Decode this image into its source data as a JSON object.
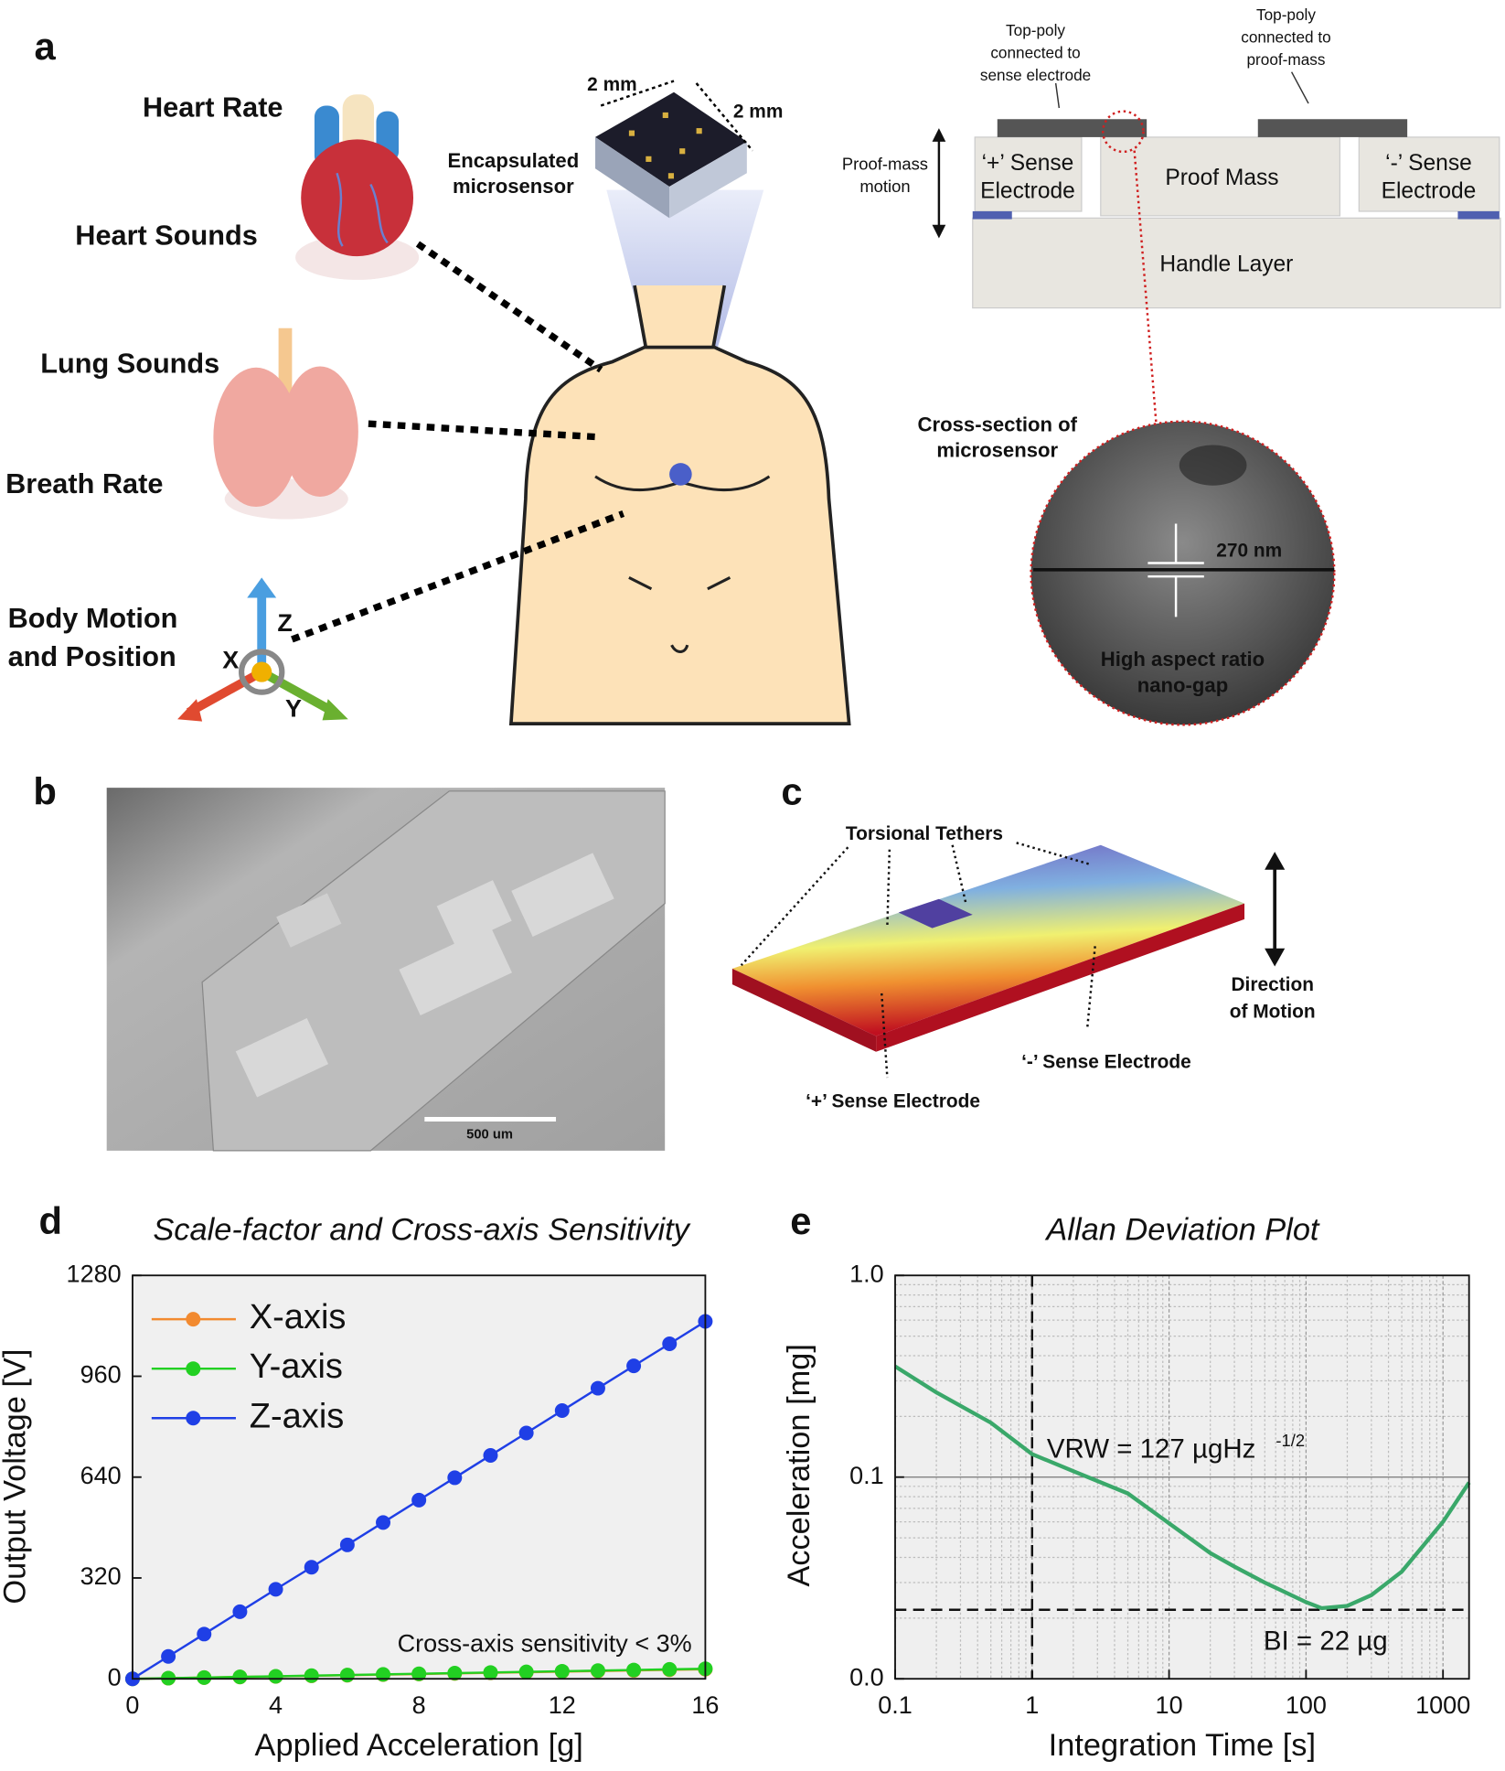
{
  "panel_labels": [
    "a",
    "b",
    "c",
    "d",
    "e"
  ],
  "panel_a": {
    "heart_rate": "Heart Rate",
    "heart_sounds": "Heart Sounds",
    "lung_sounds": "Lung Sounds",
    "breath_rate": "Breath Rate",
    "body_motion": [
      "Body Motion",
      "and Position"
    ],
    "axes": [
      "X",
      "Y",
      "Z"
    ],
    "size_1": "2 mm",
    "size_2": "2 mm",
    "encapsulated": [
      "Encapsulated",
      "microsensor"
    ],
    "top_poly_sense": [
      "Top-poly",
      "connected to",
      "sense electrode"
    ],
    "top_poly_mass": [
      "Top-poly",
      "connected to",
      "proof-mass"
    ],
    "motion": [
      "Proof-mass",
      "motion"
    ],
    "plus_electrode": [
      "‘+’ Sense",
      "Electrode"
    ],
    "proof_mass": "Proof Mass",
    "minus_electrode": [
      "‘-’ Sense",
      "Electrode"
    ],
    "handle": "Handle Layer",
    "cross_section": [
      "Cross-section of",
      "microsensor"
    ],
    "gap": "270 nm",
    "nano_gap": [
      "High aspect ratio",
      "nano-gap"
    ]
  },
  "panel_b": {
    "scale_bar": "500 um"
  },
  "panel_c": {
    "tethers": "Torsional Tethers",
    "direction": [
      "Direction",
      "of Motion"
    ],
    "minus_electrode": "‘-’ Sense Electrode",
    "plus_electrode": "‘+’ Sense Electrode"
  },
  "chart_data": [
    {
      "type": "line",
      "title": "Scale-factor and Cross-axis Sensitivity",
      "x_label": "Applied Acceleration [g]",
      "y_label": "Output Voltage [V]",
      "x": [
        0,
        1,
        2,
        3,
        4,
        5,
        6,
        7,
        8,
        9,
        10,
        11,
        12,
        13,
        14,
        15,
        16
      ],
      "series": [
        {
          "name": "X-axis",
          "color": "#f28a30",
          "values": [
            0,
            1.9,
            3.8,
            5.7,
            7.6,
            9.5,
            11.4,
            13.3,
            15.2,
            17.1,
            19,
            20.9,
            22.8,
            24.7,
            26.6,
            28.5,
            30.4
          ]
        },
        {
          "name": "Y-axis",
          "color": "#22d022",
          "values": [
            0,
            2,
            4,
            6,
            8,
            10,
            12,
            14,
            16,
            18,
            20,
            22,
            24,
            26,
            28,
            30,
            32
          ]
        },
        {
          "name": "Z-axis",
          "color": "#1f3fe6",
          "values": [
            0,
            71,
            142,
            213,
            284,
            354,
            425,
            496,
            567,
            638,
            709,
            780,
            851,
            922,
            993,
            1063,
            1134
          ]
        }
      ],
      "xlim": [
        0,
        16
      ],
      "xticks": [
        0,
        4,
        8,
        12,
        16
      ],
      "ylim": [
        0,
        1280
      ],
      "yticks": [
        0,
        320,
        640,
        960,
        1280
      ],
      "markers": true,
      "legend": "upper left",
      "background": "#f0f0f0",
      "annotation": "Cross-axis sensitivity < 3%"
    },
    {
      "type": "line",
      "title": "Allan Deviation Plot",
      "x_label": "Integration Time [s]",
      "y_label": "Acceleration [mg]",
      "x": [
        0.1,
        0.2,
        0.5,
        1,
        2,
        5,
        10,
        20,
        30,
        50,
        100,
        130,
        200,
        300,
        500,
        1000,
        1550
      ],
      "series": [
        {
          "color": "#3aa86a",
          "values": [
            0.354,
            0.263,
            0.186,
            0.13,
            0.107,
            0.083,
            0.059,
            0.042,
            0.036,
            0.03,
            0.024,
            0.0224,
            0.023,
            0.026,
            0.034,
            0.06,
            0.094
          ]
        }
      ],
      "xlim": [
        0.1,
        1550
      ],
      "xticks": [
        0.1,
        1,
        10,
        100,
        1000
      ],
      "xlog": true,
      "ylim": [
        0.01,
        1
      ],
      "yticks": [
        {
          "value": 0.01,
          "label": "0.0"
        },
        {
          "value": 0.1,
          "label": "0.1"
        },
        {
          "value": 1,
          "label": "1.0"
        }
      ],
      "ylog": true,
      "grid": true,
      "minor_grid": true,
      "background": "#efefef",
      "vline": 1,
      "hline": 0.022,
      "annotations": [
        "VRW = 127 µgHz",
        "-1/2",
        "BI = 22 µg"
      ]
    }
  ]
}
